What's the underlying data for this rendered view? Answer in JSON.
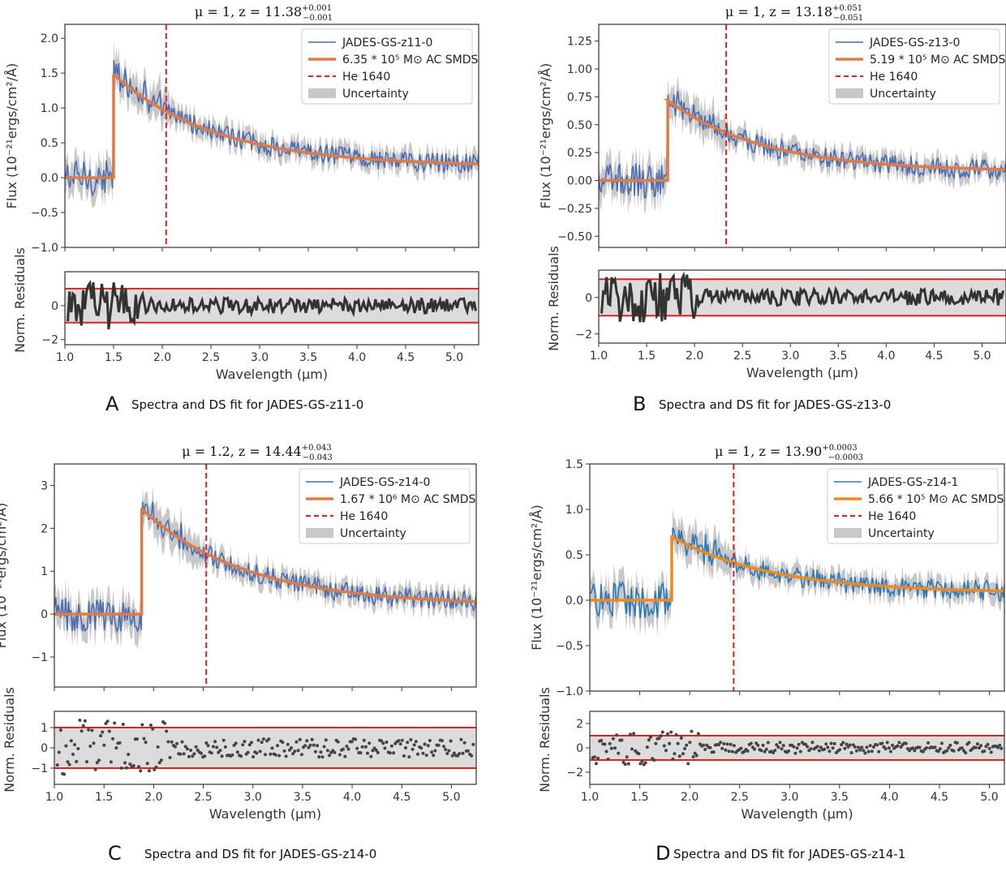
{
  "chart_data": [
    {
      "id": "A",
      "type": "line",
      "caption_letter": "A",
      "caption": "Spectra and DS fit for JADES-GS-z11-0",
      "title": {
        "prefix": "μ = 1,  z = 11.38",
        "sup": "+0.001",
        "sub": "−0.001"
      },
      "xlabel": "Wavelength (μm)",
      "ylabel": "Flux (10⁻²¹ergs/cm²/Å)",
      "residual_ylabel": "Norm. Residuals",
      "xlim": [
        1.0,
        5.25
      ],
      "ylim": [
        -1.0,
        2.2
      ],
      "residual_ylim": [
        -2.3,
        2.0
      ],
      "xticks": [
        "1.0",
        "1.5",
        "2.0",
        "2.5",
        "3.0",
        "3.5",
        "4.0",
        "4.5",
        "5.0"
      ],
      "yticks": [
        "−1.0",
        "−0.5",
        "0.0",
        "0.5",
        "1.0",
        "1.5",
        "2.0"
      ],
      "residual_yticks": [
        "−2",
        "0"
      ],
      "he_line": 2.04,
      "break": 1.5,
      "peak": 1.48,
      "tail": 0.16,
      "tau": 1.05,
      "residual_style": "line",
      "data_color": "#4a6db0",
      "model_color": "#e07b47",
      "legend": [
        {
          "label": "JADES-GS-z11-0",
          "kind": "data"
        },
        {
          "label": "6.35 * 10⁵ M⊙ AC SMDS",
          "kind": "model"
        },
        {
          "label": "He 1640",
          "kind": "he"
        },
        {
          "label": "Uncertainty",
          "kind": "band"
        }
      ]
    },
    {
      "id": "B",
      "type": "line",
      "caption_letter": "B",
      "caption": "Spectra and DS fit for JADES-GS-z13-0",
      "title": {
        "prefix": "μ = 1,  z = 13.18",
        "sup": "+0.051",
        "sub": "−0.051"
      },
      "xlabel": "Wavelength (μm)",
      "ylabel": "Flux (10⁻²¹ergs/cm²/Å)",
      "residual_ylabel": "Norm. Residuals",
      "xlim": [
        1.0,
        5.25
      ],
      "ylim": [
        -0.6,
        1.4
      ],
      "residual_ylim": [
        -2.5,
        1.5
      ],
      "xticks": [
        "1.0",
        "1.5",
        "2.0",
        "2.5",
        "3.0",
        "3.5",
        "4.0",
        "4.5",
        "5.0"
      ],
      "yticks": [
        "−0.50",
        "−0.25",
        "0.00",
        "0.25",
        "0.50",
        "0.75",
        "1.00",
        "1.25"
      ],
      "residual_yticks": [
        "−2",
        "0"
      ],
      "he_line": 2.33,
      "break": 1.72,
      "peak": 0.72,
      "tail": 0.08,
      "tau": 1.0,
      "residual_style": "line",
      "data_color": "#4a6db0",
      "model_color": "#e07b47",
      "legend": [
        {
          "label": "JADES-GS-z13-0",
          "kind": "data"
        },
        {
          "label": "5.19 * 10⁵ M⊙ AC SMDS",
          "kind": "model"
        },
        {
          "label": "He 1640",
          "kind": "he"
        },
        {
          "label": "Uncertainty",
          "kind": "band"
        }
      ]
    },
    {
      "id": "C",
      "type": "line",
      "caption_letter": "C",
      "caption": "Spectra and DS fit for JADES-GS-z14-0",
      "title": {
        "prefix": "μ = 1.2,  z = 14.44",
        "sup": "+0.043",
        "sub": "−0.043"
      },
      "xlabel": "Wavelength (μm)",
      "ylabel": "Flux (10⁻²¹ergs/cm²/Å)",
      "residual_ylabel": "Norm. Residuals",
      "xlim": [
        1.0,
        5.25
      ],
      "ylim": [
        -1.7,
        3.5
      ],
      "residual_ylim": [
        -1.8,
        1.8
      ],
      "xticks": [
        "1.0",
        "1.5",
        "2.0",
        "2.5",
        "3.0",
        "3.5",
        "4.0",
        "4.5",
        "5.0"
      ],
      "yticks": [
        "−1",
        "0",
        "1",
        "2",
        "3"
      ],
      "residual_yticks": [
        "−1",
        "0",
        "1"
      ],
      "he_line": 2.53,
      "break": 1.88,
      "peak": 2.45,
      "tail": 0.2,
      "tau": 1.05,
      "residual_style": "dots",
      "data_color": "#4a6db0",
      "model_color": "#e07b47",
      "legend": [
        {
          "label": "JADES-GS-z14-0",
          "kind": "data"
        },
        {
          "label": "1.67 * 10⁶ M⊙ AC SMDS",
          "kind": "model"
        },
        {
          "label": "He 1640",
          "kind": "he"
        },
        {
          "label": "Uncertainty",
          "kind": "band"
        }
      ]
    },
    {
      "id": "D",
      "type": "line",
      "caption_letter": "D",
      "caption": "Spectra and DS fit for JADES-GS-z14-1",
      "title": {
        "prefix": "μ = 1,  z = 13.90",
        "sup": "+0.0003",
        "sub": "−0.0003"
      },
      "xlabel": "Wavelength (μm)",
      "ylabel": "Flux (10⁻²¹ergs/cm²/Å)",
      "residual_ylabel": "Norm. Residuals",
      "xlim": [
        1.0,
        5.15
      ],
      "ylim": [
        -1.0,
        1.5
      ],
      "residual_ylim": [
        -3.0,
        3.0
      ],
      "xticks": [
        "1.0",
        "1.5",
        "2.0",
        "2.5",
        "3.0",
        "3.5",
        "4.0",
        "4.5",
        "5.0"
      ],
      "yticks": [
        "−1.0",
        "−0.5",
        "0.0",
        "0.5",
        "1.0",
        "1.5"
      ],
      "residual_yticks": [
        "−2",
        "0",
        "2"
      ],
      "he_line": 2.44,
      "break": 1.82,
      "peak": 0.7,
      "tail": 0.08,
      "tau": 1.0,
      "residual_style": "dots",
      "data_color": "#2c78b5",
      "model_color": "#f2891e",
      "legend": [
        {
          "label": "JADES-GS-z14-1",
          "kind": "data"
        },
        {
          "label": "5.66 * 10⁵ M⊙ AC SMDS",
          "kind": "model"
        },
        {
          "label": "He 1640",
          "kind": "he"
        },
        {
          "label": "Uncertainty",
          "kind": "band"
        }
      ]
    }
  ],
  "residual_band": {
    "upper": 1,
    "lower": -1,
    "color": "#e02020"
  },
  "he_color": "#e02020"
}
